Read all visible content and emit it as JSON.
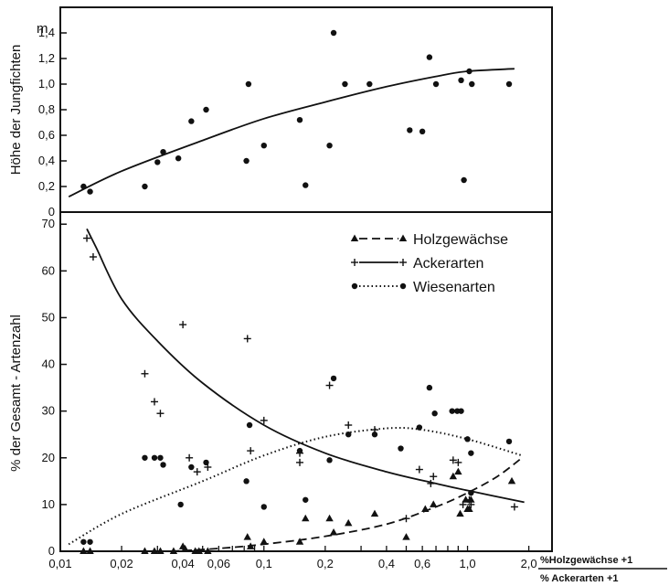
{
  "chart_data": [
    {
      "type": "scatter",
      "ylabel": "Höhe der Jungfichten",
      "unit": "m",
      "x_scale": "log",
      "xlim": [
        0.01,
        2.6
      ],
      "ylim": [
        0,
        1.6
      ],
      "yticks": [
        "0",
        "0,2",
        "0,4",
        "0,6",
        "0,8",
        "1,0",
        "1,2",
        "1,4"
      ],
      "ytick_values": [
        0,
        0.2,
        0.4,
        0.6,
        0.8,
        1.0,
        1.2,
        1.4
      ],
      "points": [
        [
          0.013,
          0.2
        ],
        [
          0.014,
          0.16
        ],
        [
          0.026,
          0.2
        ],
        [
          0.03,
          0.39
        ],
        [
          0.032,
          0.47
        ],
        [
          0.038,
          0.42
        ],
        [
          0.044,
          0.71
        ],
        [
          0.052,
          0.8
        ],
        [
          0.084,
          1.0
        ],
        [
          0.082,
          0.4
        ],
        [
          0.1,
          0.52
        ],
        [
          0.15,
          0.72
        ],
        [
          0.16,
          0.21
        ],
        [
          0.21,
          0.52
        ],
        [
          0.22,
          1.4
        ],
        [
          0.25,
          1.0
        ],
        [
          0.33,
          1.0
        ],
        [
          0.52,
          0.64
        ],
        [
          0.6,
          0.63
        ],
        [
          0.65,
          1.21
        ],
        [
          0.7,
          1.0
        ],
        [
          0.93,
          1.03
        ],
        [
          0.96,
          0.25
        ],
        [
          1.02,
          1.1
        ],
        [
          1.05,
          1.0
        ],
        [
          1.6,
          1.0
        ]
      ],
      "trend": [
        [
          0.011,
          0.12
        ],
        [
          0.02,
          0.32
        ],
        [
          0.05,
          0.56
        ],
        [
          0.1,
          0.73
        ],
        [
          0.2,
          0.86
        ],
        [
          0.4,
          0.98
        ],
        [
          0.7,
          1.06
        ],
        [
          1.0,
          1.1
        ],
        [
          1.7,
          1.12
        ]
      ]
    },
    {
      "type": "scatter",
      "ylabel": "% der Gesamt - Artenzahl",
      "x_scale": "log",
      "xlim": [
        0.01,
        2.6
      ],
      "ylim": [
        0,
        72
      ],
      "yticks": [
        "0",
        "10",
        "20",
        "30",
        "40",
        "50",
        "60",
        "70"
      ],
      "ytick_values": [
        0,
        10,
        20,
        30,
        40,
        50,
        60,
        70
      ],
      "xticks": [
        "0,01",
        "0,02",
        "0,04",
        "0,06",
        "0,1",
        "0,2",
        "0,4",
        "0,6",
        "1,0",
        "2,0"
      ],
      "xtick_values": [
        0.01,
        0.02,
        0.04,
        0.06,
        0.1,
        0.2,
        0.4,
        0.6,
        1.0,
        2.0
      ],
      "xlabel_numerator": "%Holzgewächse +1",
      "xlabel_denominator": "% Ackerarten +1",
      "legend_position": "top-right",
      "series": [
        {
          "name": "Holzgewächse",
          "marker": "triangle",
          "line": "dashed",
          "points": [
            [
              0.013,
              0
            ],
            [
              0.014,
              0
            ],
            [
              0.026,
              0
            ],
            [
              0.029,
              0
            ],
            [
              0.031,
              0
            ],
            [
              0.036,
              0
            ],
            [
              0.04,
              1
            ],
            [
              0.041,
              0.5
            ],
            [
              0.046,
              0
            ],
            [
              0.048,
              0
            ],
            [
              0.053,
              0
            ],
            [
              0.083,
              3
            ],
            [
              0.086,
              1
            ],
            [
              0.1,
              2
            ],
            [
              0.15,
              2
            ],
            [
              0.16,
              7
            ],
            [
              0.21,
              7
            ],
            [
              0.22,
              4
            ],
            [
              0.26,
              6
            ],
            [
              0.35,
              8
            ],
            [
              0.5,
              3
            ],
            [
              0.62,
              9
            ],
            [
              0.68,
              10
            ],
            [
              0.85,
              16
            ],
            [
              0.9,
              17
            ],
            [
              0.92,
              8
            ],
            [
              0.98,
              11
            ],
            [
              1.0,
              9
            ],
            [
              1.02,
              9
            ],
            [
              1.04,
              11
            ],
            [
              1.65,
              15
            ]
          ],
          "trend": [
            [
              0.035,
              0
            ],
            [
              0.06,
              0.6
            ],
            [
              0.1,
              1.5
            ],
            [
              0.2,
              3.2
            ],
            [
              0.4,
              5.8
            ],
            [
              0.7,
              9.5
            ],
            [
              1.0,
              12.5
            ],
            [
              1.4,
              16
            ],
            [
              1.85,
              20
            ]
          ]
        },
        {
          "name": "Ackerarten",
          "marker": "plus",
          "line": "solid",
          "points": [
            [
              0.0135,
              67
            ],
            [
              0.0145,
              63
            ],
            [
              0.026,
              38
            ],
            [
              0.029,
              32
            ],
            [
              0.031,
              29.5
            ],
            [
              0.04,
              48.5
            ],
            [
              0.043,
              20
            ],
            [
              0.047,
              17
            ],
            [
              0.053,
              18
            ],
            [
              0.083,
              45.5
            ],
            [
              0.086,
              21.5
            ],
            [
              0.1,
              28
            ],
            [
              0.15,
              19
            ],
            [
              0.15,
              21
            ],
            [
              0.21,
              35.5
            ],
            [
              0.26,
              27
            ],
            [
              0.35,
              26
            ],
            [
              0.5,
              7
            ],
            [
              0.58,
              17.5
            ],
            [
              0.66,
              14.5
            ],
            [
              0.68,
              16
            ],
            [
              0.85,
              19.5
            ],
            [
              0.9,
              19
            ],
            [
              0.95,
              10
            ],
            [
              1.02,
              11
            ],
            [
              1.04,
              10
            ],
            [
              1.7,
              9.5
            ]
          ],
          "trend": [
            [
              0.0135,
              69
            ],
            [
              0.015,
              65
            ],
            [
              0.02,
              54
            ],
            [
              0.03,
              45
            ],
            [
              0.05,
              36
            ],
            [
              0.1,
              27
            ],
            [
              0.2,
              21
            ],
            [
              0.4,
              17
            ],
            [
              0.7,
              14.5
            ],
            [
              1.0,
              13
            ],
            [
              1.9,
              10.5
            ]
          ]
        },
        {
          "name": "Wiesenarten",
          "marker": "circle",
          "line": "dotted",
          "points": [
            [
              0.013,
              2
            ],
            [
              0.014,
              2
            ],
            [
              0.026,
              20
            ],
            [
              0.029,
              20
            ],
            [
              0.031,
              20
            ],
            [
              0.032,
              18.5
            ],
            [
              0.039,
              10
            ],
            [
              0.044,
              18
            ],
            [
              0.052,
              19
            ],
            [
              0.082,
              15
            ],
            [
              0.085,
              27
            ],
            [
              0.1,
              9.5
            ],
            [
              0.15,
              21.5
            ],
            [
              0.16,
              11
            ],
            [
              0.21,
              19.5
            ],
            [
              0.22,
              37
            ],
            [
              0.26,
              25
            ],
            [
              0.35,
              25
            ],
            [
              0.47,
              22
            ],
            [
              0.58,
              26.5
            ],
            [
              0.65,
              35
            ],
            [
              0.69,
              29.5
            ],
            [
              0.84,
              30
            ],
            [
              0.89,
              30
            ],
            [
              0.93,
              30
            ],
            [
              1.0,
              24
            ],
            [
              1.04,
              21
            ],
            [
              1.04,
              12.5
            ],
            [
              1.6,
              23.5
            ]
          ],
          "trend": [
            [
              0.011,
              1.5
            ],
            [
              0.02,
              8
            ],
            [
              0.05,
              15
            ],
            [
              0.1,
              20.5
            ],
            [
              0.2,
              24.5
            ],
            [
              0.4,
              26.3
            ],
            [
              0.6,
              26
            ],
            [
              1.0,
              24
            ],
            [
              1.85,
              20.5
            ]
          ]
        }
      ]
    }
  ]
}
